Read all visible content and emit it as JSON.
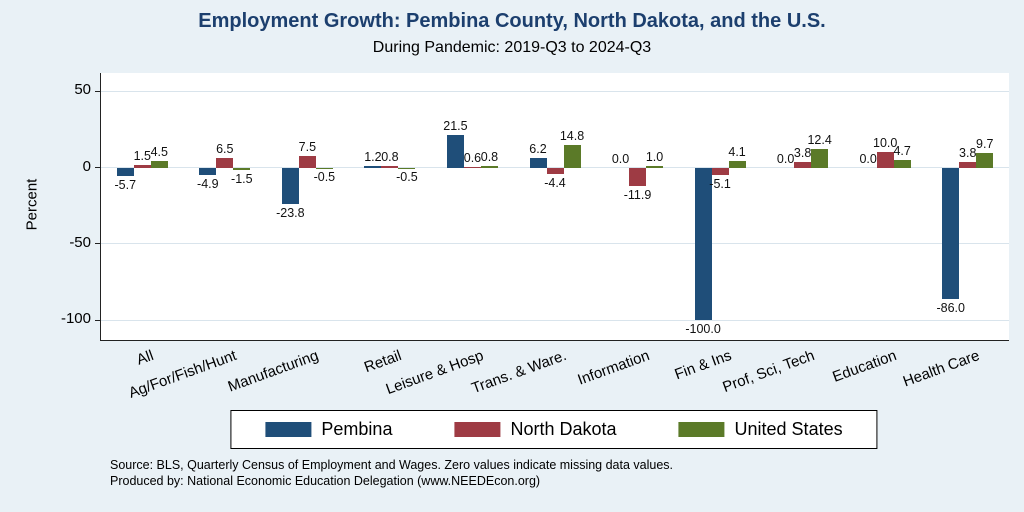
{
  "chart": {
    "title": "Employment Growth: Pembina County, North Dakota, and the U.S.",
    "subtitle": "During Pandemic: 2019-Q3 to 2024-Q3",
    "ylabel": "Percent"
  },
  "notes": {
    "line1": "Source: BLS, Quarterly Census of Employment and Wages. Zero values indicate missing data values.",
    "line2": "Produced by: National Economic Education Delegation (www.NEEDEcon.org)"
  },
  "chart_data": {
    "type": "bar",
    "title": "Employment Growth: Pembina County, North Dakota, and the U.S.",
    "subtitle": "During Pandemic: 2019-Q3 to 2024-Q3",
    "ylabel": "Percent",
    "xlabel": "",
    "categories": [
      "All",
      "Ag/For/Fish/Hunt",
      "Manufacturing",
      "Retail",
      "Leisure & Hosp",
      "Trans. & Ware.",
      "Information",
      "Fin & Ins",
      "Prof, Sci, Tech",
      "Education",
      "Health Care"
    ],
    "series": [
      {
        "name": "Pembina",
        "color": "#1f4e79",
        "values": [
          -5.7,
          -4.9,
          -23.8,
          1.2,
          21.5,
          6.2,
          0.0,
          -100.0,
          0.0,
          0.0,
          -86.0
        ]
      },
      {
        "name": "North Dakota",
        "color": "#9e3b44",
        "values": [
          1.5,
          6.5,
          7.5,
          0.8,
          0.6,
          -4.4,
          -11.9,
          -5.1,
          3.8,
          10.0,
          3.8
        ]
      },
      {
        "name": "United States",
        "color": "#5b7a28",
        "values": [
          4.5,
          -1.5,
          -0.5,
          -0.5,
          0.8,
          14.8,
          1.0,
          4.1,
          12.4,
          4.7,
          9.7
        ]
      }
    ],
    "ylim": [
      -113,
      62
    ],
    "yticks": [
      50,
      0,
      -50,
      -100
    ],
    "grid": true,
    "legend_position": "bottom"
  }
}
